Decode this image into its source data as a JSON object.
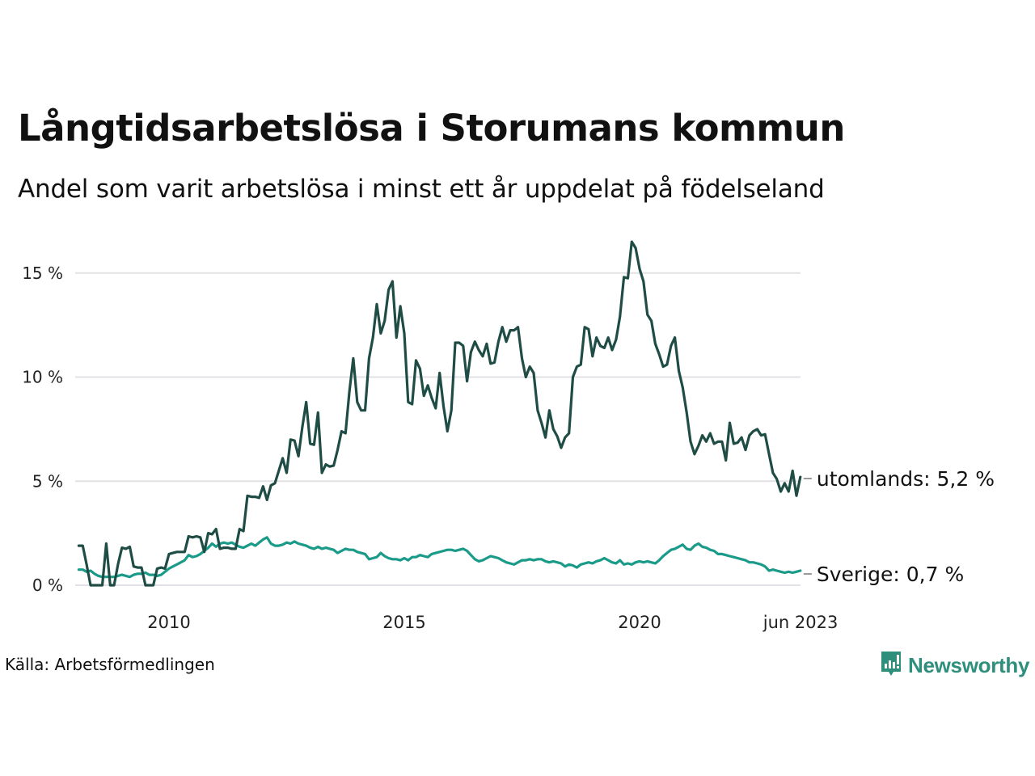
{
  "header": {
    "title": "Långtidsarbetslösa i Storumans kommun",
    "subtitle": "Andel som varit arbetslösa i minst ett år uppdelat på födelseland"
  },
  "footer": {
    "source": "Källa: Arbetsförmedlingen",
    "brand": "Newsworthy",
    "brand_icon": "bar-chart-speech-bubble-icon",
    "brand_color": "#2f8f7d"
  },
  "chart_data": {
    "type": "line",
    "title": "Långtidsarbetslösa i Storumans kommun",
    "subtitle": "Andel som varit arbetslösa i minst ett år uppdelat på födelseland",
    "xlabel": "",
    "ylabel": "",
    "x_start": "2008-02",
    "x_end": "2023-06",
    "x_frequency": "monthly",
    "x_ticks": [
      {
        "label": "2010",
        "year": 2010.0
      },
      {
        "label": "2015",
        "year": 2015.0
      },
      {
        "label": "2020",
        "year": 2020.0
      },
      {
        "label": "jun 2023",
        "year": 2023.42
      }
    ],
    "ylim": [
      0,
      16.5
    ],
    "y_ticks": [
      {
        "label": "0 %",
        "value": 0
      },
      {
        "label": "5 %",
        "value": 5
      },
      {
        "label": "10 %",
        "value": 10
      },
      {
        "label": "15 %",
        "value": 15
      }
    ],
    "grid": "horizontal",
    "legend": "direct-labels-right",
    "series": [
      {
        "name": "utomlands",
        "end_label": "utomlands: 5,2 %",
        "color": "#1f4d45",
        "values": [
          1.9,
          1.9,
          1.0,
          0,
          0,
          0,
          0,
          2.0,
          0,
          0,
          1.0,
          1.8,
          1.75,
          1.85,
          0.9,
          0.85,
          0.85,
          0,
          0,
          0,
          0.8,
          0.85,
          0.8,
          1.5,
          1.55,
          1.6,
          1.6,
          1.6,
          2.35,
          2.3,
          2.35,
          2.3,
          1.6,
          2.5,
          2.45,
          2.7,
          1.75,
          1.8,
          1.8,
          1.75,
          1.75,
          2.7,
          2.6,
          4.3,
          4.25,
          4.25,
          4.2,
          4.75,
          4.1,
          4.8,
          4.9,
          5.5,
          6.1,
          5.4,
          7.0,
          6.95,
          6.2,
          7.6,
          8.8,
          6.8,
          6.75,
          8.3,
          5.4,
          5.8,
          5.7,
          5.75,
          6.5,
          7.4,
          7.3,
          9.3,
          10.9,
          8.8,
          8.4,
          8.4,
          10.9,
          11.9,
          13.5,
          12.1,
          12.7,
          14.2,
          14.6,
          11.9,
          13.4,
          12.1,
          8.8,
          8.7,
          10.8,
          10.4,
          9.1,
          9.6,
          9.0,
          8.5,
          10.2,
          8.6,
          7.4,
          8.4,
          11.65,
          11.65,
          11.5,
          9.8,
          11.2,
          11.7,
          11.3,
          11.0,
          11.6,
          10.65,
          10.7,
          11.7,
          12.4,
          11.7,
          12.25,
          12.25,
          12.4,
          10.9,
          10.0,
          10.5,
          10.2,
          8.4,
          7.8,
          7.1,
          8.4,
          7.5,
          7.15,
          6.6,
          7.1,
          7.3,
          10.0,
          10.5,
          10.6,
          12.4,
          12.3,
          11.0,
          11.9,
          11.5,
          11.4,
          11.9,
          11.3,
          11.8,
          12.9,
          14.8,
          14.75,
          16.5,
          16.2,
          15.2,
          14.6,
          13.0,
          12.7,
          11.6,
          11.1,
          10.5,
          10.6,
          11.5,
          11.9,
          10.3,
          9.5,
          8.3,
          6.9,
          6.3,
          6.7,
          7.2,
          6.9,
          7.3,
          6.8,
          6.9,
          6.9,
          6.0,
          7.8,
          6.8,
          6.85,
          7.1,
          6.5,
          7.2,
          7.4,
          7.5,
          7.2,
          7.25,
          6.3,
          5.4,
          5.1,
          4.5,
          4.9,
          4.5,
          5.5,
          4.3,
          5.2
        ]
      },
      {
        "name": "Sverige",
        "end_label": "Sverige: 0,7 %",
        "color": "#1a9a88",
        "values": [
          0.75,
          0.75,
          0.65,
          0.7,
          0.55,
          0.45,
          0.4,
          0.4,
          0.4,
          0.4,
          0.45,
          0.5,
          0.45,
          0.4,
          0.5,
          0.55,
          0.55,
          0.6,
          0.5,
          0.5,
          0.45,
          0.5,
          0.65,
          0.8,
          0.9,
          1.0,
          1.1,
          1.2,
          1.45,
          1.35,
          1.4,
          1.5,
          1.65,
          1.8,
          2.0,
          1.85,
          2.0,
          2.05,
          2.0,
          2.05,
          1.95,
          1.85,
          1.8,
          1.9,
          2.0,
          1.9,
          2.05,
          2.2,
          2.3,
          2.0,
          1.9,
          1.9,
          1.95,
          2.05,
          2.0,
          2.1,
          2.0,
          1.95,
          1.9,
          1.8,
          1.75,
          1.85,
          1.75,
          1.8,
          1.75,
          1.7,
          1.55,
          1.65,
          1.75,
          1.7,
          1.7,
          1.6,
          1.55,
          1.5,
          1.25,
          1.3,
          1.35,
          1.55,
          1.4,
          1.3,
          1.25,
          1.25,
          1.2,
          1.3,
          1.2,
          1.35,
          1.35,
          1.45,
          1.4,
          1.35,
          1.5,
          1.55,
          1.6,
          1.65,
          1.7,
          1.7,
          1.65,
          1.7,
          1.75,
          1.65,
          1.45,
          1.25,
          1.15,
          1.2,
          1.3,
          1.4,
          1.35,
          1.3,
          1.2,
          1.1,
          1.05,
          1.0,
          1.1,
          1.2,
          1.2,
          1.25,
          1.2,
          1.25,
          1.25,
          1.15,
          1.1,
          1.15,
          1.1,
          1.05,
          0.9,
          1.0,
          0.95,
          0.85,
          1.0,
          1.05,
          1.1,
          1.05,
          1.15,
          1.2,
          1.3,
          1.2,
          1.1,
          1.05,
          1.2,
          1.0,
          1.05,
          1.0,
          1.1,
          1.15,
          1.1,
          1.15,
          1.1,
          1.05,
          1.2,
          1.4,
          1.55,
          1.7,
          1.75,
          1.85,
          1.95,
          1.75,
          1.7,
          1.9,
          2.0,
          1.85,
          1.8,
          1.7,
          1.65,
          1.5,
          1.5,
          1.45,
          1.4,
          1.35,
          1.3,
          1.25,
          1.2,
          1.1,
          1.1,
          1.05,
          1.0,
          0.9,
          0.7,
          0.75,
          0.7,
          0.65,
          0.6,
          0.65,
          0.6,
          0.65,
          0.7
        ]
      }
    ]
  }
}
